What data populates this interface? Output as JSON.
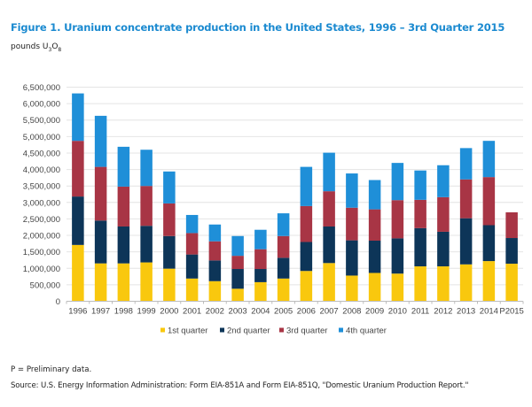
{
  "header": {
    "title": "Figure 1. Uranium concentrate production in the United States, 1996 – 3rd Quarter 2015",
    "units_prefix": "pounds U",
    "units_sub1": "3",
    "units_mid": "O",
    "units_sub2": "8"
  },
  "footer": {
    "preliminary_note": "P = Preliminary data.",
    "source": "Source: U.S. Energy Information Administration: Form EIA-851A and Form EIA-851Q, \"Domestic Uranium Production Report.\""
  },
  "chart_data": {
    "type": "bar",
    "stacked": true,
    "title": "Figure 1. Uranium concentrate production in the United States, 1996 – 3rd Quarter 2015",
    "xlabel": "",
    "ylabel": "pounds U3O8",
    "ylim": [
      0,
      6500000
    ],
    "ytick_step": 500000,
    "yticks": [
      "0",
      "500,000",
      "1,000,000",
      "1,500,000",
      "2,000,000",
      "2,500,000",
      "3,000,000",
      "3,500,000",
      "4,000,000",
      "4,500,000",
      "5,000,000",
      "5,500,000",
      "6,000,000",
      "6,500,000"
    ],
    "grid": true,
    "legend_position": "bottom",
    "categories": [
      "1996",
      "1997",
      "1998",
      "1999",
      "2000",
      "2001",
      "2002",
      "2003",
      "2004",
      "2005",
      "2006",
      "2007",
      "2008",
      "2009",
      "2010",
      "2011",
      "2012",
      "2013",
      "2014",
      "P2015"
    ],
    "series": [
      {
        "name": "1st quarter",
        "color": "#f9c80e",
        "values": [
          1710000,
          1150000,
          1150000,
          1180000,
          990000,
          690000,
          610000,
          380000,
          580000,
          690000,
          920000,
          1160000,
          780000,
          860000,
          840000,
          1060000,
          1060000,
          1120000,
          1220000,
          1140000
        ]
      },
      {
        "name": "2nd quarter",
        "color": "#0d3558",
        "values": [
          1470000,
          1300000,
          1120000,
          1110000,
          990000,
          730000,
          630000,
          600000,
          400000,
          630000,
          880000,
          1110000,
          1070000,
          980000,
          1070000,
          1160000,
          1050000,
          1400000,
          1090000,
          780000
        ]
      },
      {
        "name": "3rd quarter",
        "color": "#a83545",
        "values": [
          1690000,
          1630000,
          1210000,
          1210000,
          990000,
          650000,
          580000,
          400000,
          600000,
          660000,
          1090000,
          1070000,
          990000,
          950000,
          1160000,
          860000,
          1050000,
          1180000,
          1460000,
          780000
        ]
      },
      {
        "name": "4th quarter",
        "color": "#1f8fd8",
        "values": [
          1440000,
          1550000,
          1210000,
          1100000,
          970000,
          550000,
          510000,
          600000,
          590000,
          690000,
          1190000,
          1170000,
          1040000,
          890000,
          1130000,
          890000,
          970000,
          950000,
          1100000,
          0
        ]
      }
    ]
  }
}
